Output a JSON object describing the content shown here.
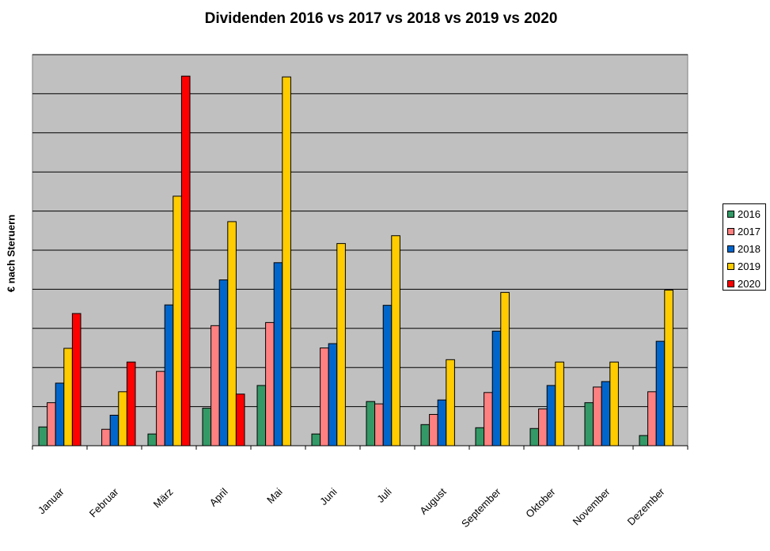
{
  "chart_data": {
    "type": "bar",
    "title": "Dividenden 2016 vs 2017 vs 2018 vs 2019 vs 2020",
    "xlabel": "",
    "ylabel": "€ nach Steruern",
    "ylim": [
      0,
      10
    ],
    "grid": true,
    "legend_position": "right",
    "categories": [
      "Januar",
      "Februar",
      "März",
      "April",
      "Mai",
      "Juni",
      "Juli",
      "August",
      "September",
      "Oktober",
      "November",
      "Dezember"
    ],
    "series": [
      {
        "name": "2016",
        "color": "#339966",
        "values": [
          0.48,
          0,
          0.3,
          0.96,
          1.54,
          0.3,
          1.13,
          0.54,
          0.46,
          0.44,
          1.1,
          0.26
        ]
      },
      {
        "name": "2017",
        "color": "#ff8080",
        "values": [
          1.1,
          0.42,
          1.9,
          3.07,
          3.15,
          2.5,
          1.07,
          0.8,
          1.36,
          0.94,
          1.5,
          1.38
        ]
      },
      {
        "name": "2018",
        "color": "#0066cc",
        "values": [
          1.6,
          0.78,
          3.6,
          4.24,
          4.68,
          2.61,
          3.59,
          1.17,
          2.93,
          1.54,
          1.64,
          2.67
        ]
      },
      {
        "name": "2019",
        "color": "#ffcc00",
        "values": [
          2.49,
          1.38,
          6.38,
          5.73,
          9.43,
          5.17,
          5.37,
          2.2,
          3.92,
          2.14,
          2.14,
          3.98
        ]
      },
      {
        "name": "2020",
        "color": "#ff0000",
        "values": [
          3.38,
          2.14,
          9.45,
          1.32,
          0,
          0,
          0,
          0,
          0,
          0,
          0,
          0
        ]
      }
    ]
  },
  "colors": {
    "plot_background": "#c0c0c0",
    "grid": "#000000"
  }
}
